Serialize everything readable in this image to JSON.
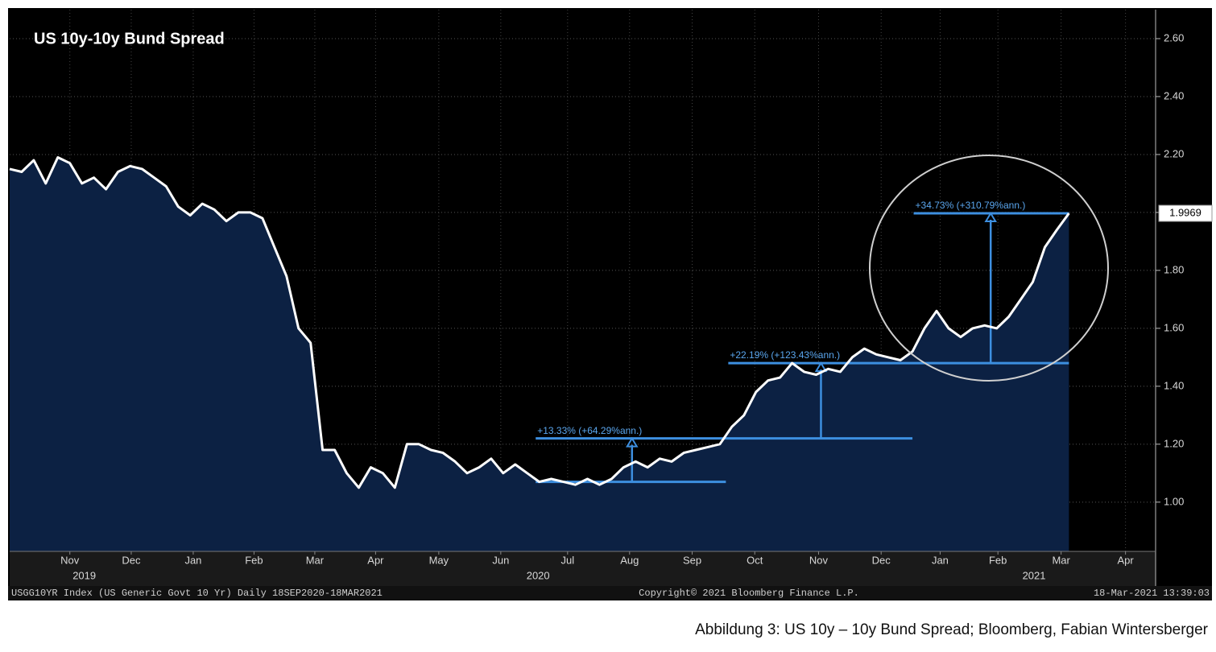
{
  "chart_data": {
    "type": "line",
    "title": "US 10y-10y Bund Spread",
    "color": "#ffffff",
    "fill": "#0c2143",
    "values": [
      2.15,
      2.14,
      2.18,
      2.1,
      2.19,
      2.17,
      2.1,
      2.12,
      2.08,
      2.14,
      2.16,
      2.15,
      2.12,
      2.09,
      2.02,
      1.99,
      2.03,
      2.01,
      1.97,
      2.0,
      2.0,
      1.98,
      1.88,
      1.78,
      1.6,
      1.55,
      1.18,
      1.18,
      1.1,
      1.05,
      1.12,
      1.1,
      1.05,
      1.2,
      1.2,
      1.18,
      1.17,
      1.14,
      1.1,
      1.12,
      1.15,
      1.1,
      1.13,
      1.1,
      1.07,
      1.08,
      1.07,
      1.06,
      1.08,
      1.06,
      1.08,
      1.12,
      1.14,
      1.12,
      1.15,
      1.14,
      1.17,
      1.18,
      1.19,
      1.2,
      1.26,
      1.3,
      1.38,
      1.42,
      1.43,
      1.48,
      1.45,
      1.44,
      1.46,
      1.45,
      1.5,
      1.53,
      1.51,
      1.5,
      1.49,
      1.52,
      1.6,
      1.66,
      1.6,
      1.57,
      1.6,
      1.61,
      1.6,
      1.64,
      1.7,
      1.76,
      1.88,
      1.94,
      1.9969
    ],
    "xlim": [
      0,
      95.2
    ],
    "xticks": [
      {
        "value": 5.0,
        "label": "Nov"
      },
      {
        "value": 10.1,
        "label": "Dec"
      },
      {
        "value": 15.25,
        "label": "Jan"
      },
      {
        "value": 20.3,
        "label": "Feb"
      },
      {
        "value": 25.35,
        "label": "Mar"
      },
      {
        "value": 30.4,
        "label": "Apr"
      },
      {
        "value": 35.65,
        "label": "May"
      },
      {
        "value": 40.8,
        "label": "Jun"
      },
      {
        "value": 46.35,
        "label": "Jul"
      },
      {
        "value": 51.5,
        "label": "Aug"
      },
      {
        "value": 56.7,
        "label": "Sep"
      },
      {
        "value": 61.9,
        "label": "Oct"
      },
      {
        "value": 67.2,
        "label": "Nov"
      },
      {
        "value": 72.4,
        "label": "Dec"
      },
      {
        "value": 77.3,
        "label": "Jan"
      },
      {
        "value": 82.1,
        "label": "Feb"
      },
      {
        "value": 87.35,
        "label": "Mar"
      },
      {
        "value": 92.7,
        "label": "Apr"
      }
    ],
    "year_labels": [
      {
        "value": 6.2,
        "label": "2019"
      },
      {
        "value": 43.9,
        "label": "2020"
      },
      {
        "value": 85.1,
        "label": "2021"
      }
    ],
    "ylim": [
      0.83,
      2.7
    ],
    "yticks": [
      {
        "value": 1.0,
        "label": "1.00"
      },
      {
        "value": 1.2,
        "label": "1.20"
      },
      {
        "value": 1.4,
        "label": "1.40"
      },
      {
        "value": 1.6,
        "label": "1.60"
      },
      {
        "value": 1.8,
        "label": "1.80"
      },
      {
        "value": 2.0,
        "label": "2.00"
      },
      {
        "value": 2.2,
        "label": "2.20"
      },
      {
        "value": 2.4,
        "label": "2.40"
      },
      {
        "value": 2.6,
        "label": "2.60"
      }
    ],
    "grid": true,
    "annotation_color": "#3d8fe0",
    "levels": [
      {
        "value": 1.07,
        "start": 43.7,
        "end": 59.5
      },
      {
        "value": 1.22,
        "start": 43.7,
        "end": 75.0
      },
      {
        "value": 1.48,
        "start": 59.7,
        "end": 88.0
      },
      {
        "value": 1.9969,
        "start": 75.1,
        "end": 88.0
      }
    ],
    "measurements": [
      {
        "label": "+13.33% (+64.29%ann.)",
        "x": 51.7,
        "from": 1.07,
        "to": 1.22,
        "label_x": 43.7
      },
      {
        "label": "+22.19% (+123.43%ann.)",
        "x": 67.4,
        "from": 1.22,
        "to": 1.48,
        "label_x": 59.7
      },
      {
        "label": "+34.73% (+310.79%ann.)",
        "x": 81.5,
        "from": 1.48,
        "to": 1.9969,
        "label_x": 75.1
      }
    ],
    "footer_left": "USGG10YR Index (US Generic Govt 10 Yr)  Daily 18SEP2020-18MAR2021",
    "footer_center": "Copyright© 2021 Bloomberg Finance L.P.",
    "footer_right": "18-Mar-2021 13:39:03",
    "caption": "Abbildung 3: US 10y – 10y Bund Spread; Bloomberg, Fabian Wintersberger"
  }
}
